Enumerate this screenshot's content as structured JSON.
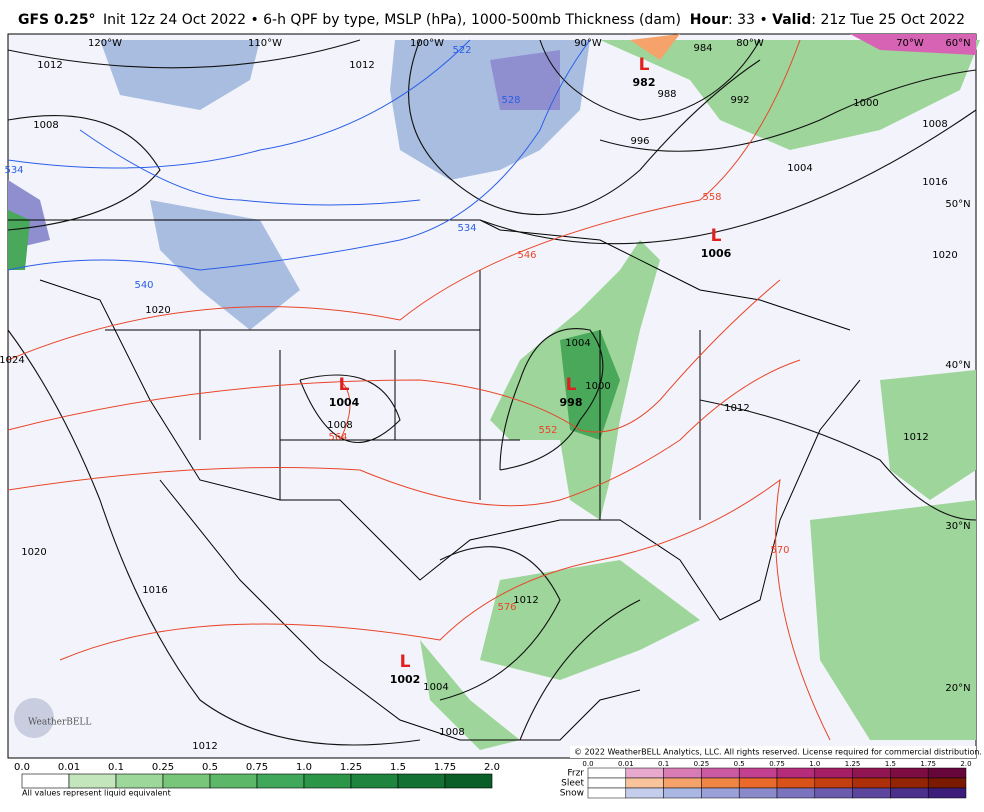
{
  "header": {
    "model": "GFS 0.25°",
    "description": "Init 12z 24 Oct 2022 • 6-h QPF by type, MSLP (hPa), 1000-500mb Thickness (dam)",
    "hour_key": "Hour",
    "hour_value": ": 33 • ",
    "valid_key": "Valid",
    "valid_value": ": 21z Tue 25 Oct 2022"
  },
  "map": {
    "longitude_labels": [
      "120°W",
      "110°W",
      "100°W",
      "90°W",
      "80°W",
      "70°W"
    ],
    "latitude_labels": [
      "60°N",
      "50°N",
      "40°N",
      "30°N",
      "20°N"
    ],
    "lows": [
      {
        "symbol": "L",
        "pressure": "982"
      },
      {
        "symbol": "L",
        "pressure": "1006"
      },
      {
        "symbol": "L",
        "pressure": "1004"
      },
      {
        "symbol": "L",
        "pressure": "998"
      },
      {
        "symbol": "L",
        "pressure": "1002"
      }
    ],
    "isobar_labels": [
      "1012",
      "1012",
      "1008",
      "988",
      "996",
      "1004",
      "1000",
      "1008",
      "1016",
      "1020",
      "1020",
      "1024",
      "1008",
      "1012",
      "1012",
      "1020",
      "1016",
      "1012",
      "1004",
      "1008",
      "1012",
      "1000",
      "1004",
      "992",
      "984"
    ],
    "thickness_labels": [
      "558",
      "546",
      "552",
      "576",
      "570",
      "564"
    ],
    "cold_thickness_labels": [
      "522",
      "528",
      "534",
      "540",
      "534"
    ],
    "logo": "WeatherBELL",
    "copyright": "© 2022 WeatherBELL Analytics, LLC. All rights reserved. License required for commercial distribution."
  },
  "legend": {
    "qpf_ticks": [
      "0.0",
      "0.01",
      "0.1",
      "0.25",
      "0.5",
      "0.75",
      "1.0",
      "1.25",
      "1.5",
      "1.75",
      "2.0"
    ],
    "note": "All values represent liquid equivalent",
    "type_ticks": [
      "0.0",
      "0.01",
      "0.1",
      "0.25",
      "0.5",
      "0.75",
      "1.0",
      "1.25",
      "1.5",
      "1.75",
      "2.0"
    ],
    "types": [
      "Frzr",
      "Sleet",
      "Snow"
    ]
  }
}
